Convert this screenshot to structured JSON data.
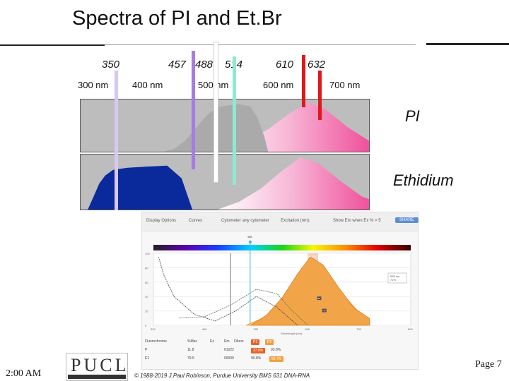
{
  "title": "Spectra of PI and Et.Br",
  "laser_lines": [
    {
      "label": "350",
      "nm": 350,
      "color": "#d8c8ef"
    },
    {
      "label": "457",
      "nm": 457,
      "color": "#a77ae6"
    },
    {
      "label": "488",
      "nm": 488,
      "color": "#ffffff"
    },
    {
      "label": "514",
      "nm": 514,
      "color": "#8fe8d2"
    },
    {
      "label": "610",
      "nm": 610,
      "color": "#e01818"
    },
    {
      "label": "632",
      "nm": 632,
      "color": "#e01818"
    }
  ],
  "wavelength_ticks": [
    "300 nm",
    "400 nm",
    "500 nm",
    "600 nm",
    "700 nm"
  ],
  "panels": [
    {
      "label": "PI",
      "excitation_color": "#aaaaaa",
      "emission_color": "#f0408f"
    },
    {
      "label": "Ethidium",
      "excitation_color": "#0a2a9c",
      "emission_color": "#f0408f"
    }
  ],
  "viewer": {
    "toolbar": {
      "display_options": "Display Options",
      "curves": "Curves",
      "cytometer": "Cytometer",
      "cytometer_value": "any cytometer",
      "excitation": "Excitation (nm):",
      "show_emission": "Show Em when Ex % > 5",
      "button": "SHARE"
    },
    "laser_marker": "488",
    "filter_label": "610/20",
    "y_ticks": [
      "100",
      "80",
      "60",
      "40",
      "20",
      "0"
    ],
    "x_ticks": [
      "300",
      "400",
      "500",
      "600",
      "700",
      "800"
    ],
    "x_axis_label": "Wavelength (nm)",
    "legend": [
      "535 nm",
      "71%"
    ],
    "peak_marks": [
      "E1",
      "P"
    ],
    "table": {
      "headers": [
        "Fluorochrome",
        "%Max",
        "Ex",
        "Em",
        "Filters"
      ],
      "filter_pills": [
        "P1",
        "P2"
      ],
      "rows": [
        {
          "name": "P",
          "max": "11.8",
          "ex": "61022",
          "em": "37.8%",
          "f2": "93.8%"
        },
        {
          "name": "E1",
          "max": "79.5",
          "ex": "69000",
          "em": "90.8%",
          "f2": "56.7%"
        }
      ]
    }
  },
  "chart_data": {
    "type": "area",
    "title": "Spectra of PI and Et.Br",
    "x_unit": "nm",
    "xlim": [
      300,
      700
    ],
    "ylim": [
      0,
      100
    ],
    "x_tick_labels": [
      "300 nm",
      "400 nm",
      "500 nm",
      "600 nm",
      "700 nm"
    ],
    "laser_lines_nm": [
      350,
      457,
      488,
      514,
      610,
      632
    ],
    "series": [
      {
        "name": "PI",
        "kind": "excitation",
        "x": [
          415,
          430,
          445,
          460,
          475,
          490,
          505,
          520,
          535,
          545,
          555,
          560
        ],
        "y": [
          0,
          6,
          22,
          48,
          74,
          90,
          94,
          96,
          92,
          70,
          30,
          0
        ]
      },
      {
        "name": "PI",
        "kind": "emission",
        "x": [
          480,
          520,
          560,
          590,
          617,
          640,
          670,
          700,
          720
        ],
        "y": [
          0,
          15,
          45,
          78,
          100,
          85,
          50,
          22,
          8
        ]
      },
      {
        "name": "Ethidium",
        "kind": "excitation",
        "x": [
          310,
          318,
          326,
          334,
          345,
          365,
          390,
          420,
          440,
          450,
          455
        ],
        "y": [
          0,
          25,
          50,
          65,
          76,
          80,
          82,
          84,
          60,
          20,
          0
        ]
      },
      {
        "name": "Ethidium",
        "kind": "emission",
        "x": [
          490,
          520,
          550,
          580,
          605,
          630,
          660,
          690,
          720
        ],
        "y": [
          0,
          15,
          40,
          75,
          100,
          88,
          55,
          25,
          10
        ]
      }
    ]
  },
  "footer": {
    "clock": "2:00 AM",
    "logo": "PUCL",
    "copyright": "© 1988-2019 J.Paul Robinson, Purdue University BMS 631 DNA-RNA",
    "page": "Page 7"
  }
}
